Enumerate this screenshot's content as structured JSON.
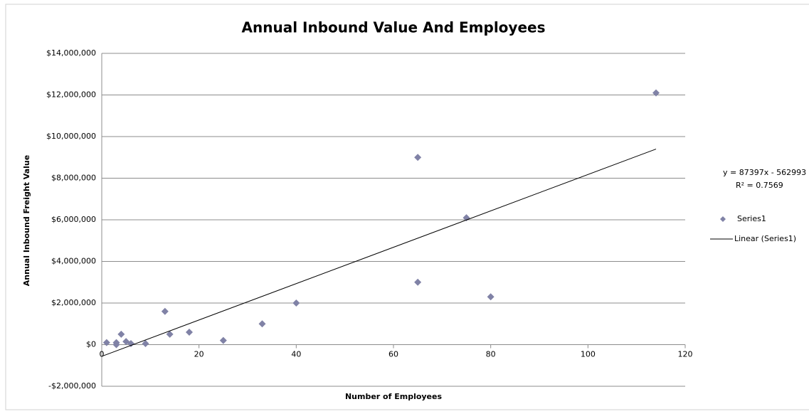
{
  "chart_data": {
    "type": "scatter",
    "title": "Annual Inbound Value And Employees",
    "x_label": "Number of Employees",
    "y_label": "Annual Inbound  Freight Value",
    "series": [
      {
        "name": "Series1",
        "color": "#8082a6",
        "x": [
          1,
          3,
          3,
          4,
          5,
          6,
          9,
          13,
          14,
          18,
          25,
          33,
          40,
          65,
          65,
          75,
          80,
          114
        ],
        "values": [
          100000,
          100000,
          0,
          500000,
          150000,
          50000,
          50000,
          1600000,
          500000,
          600000,
          200000,
          1000000,
          2000000,
          9000000,
          3000000,
          6100000,
          2300000,
          12100000
        ]
      }
    ],
    "trendline": {
      "name": "Linear (Series1)",
      "color": "#000000",
      "x": [
        0,
        114
      ],
      "values": [
        -562993,
        9400265
      ],
      "equation": "y = 87397x - 562993",
      "r_squared": "R² = 0.7569"
    },
    "xlim": [
      0,
      120
    ],
    "xticks": [
      0,
      20,
      40,
      60,
      80,
      100,
      120
    ],
    "ylim": [
      -2000000,
      14000000
    ],
    "yticks": [
      {
        "value": -2000000,
        "label": "-$2,000,000"
      },
      {
        "value": 0,
        "label": "$0"
      },
      {
        "value": 2000000,
        "label": "$2,000,000"
      },
      {
        "value": 4000000,
        "label": "$4,000,000"
      },
      {
        "value": 6000000,
        "label": "$6,000,000"
      },
      {
        "value": 8000000,
        "label": "$8,000,000"
      },
      {
        "value": 10000000,
        "label": "$10,000,000"
      },
      {
        "value": 12000000,
        "label": "$12,000,000"
      },
      {
        "value": 14000000,
        "label": "$14,000,000"
      }
    ],
    "grid": true
  }
}
